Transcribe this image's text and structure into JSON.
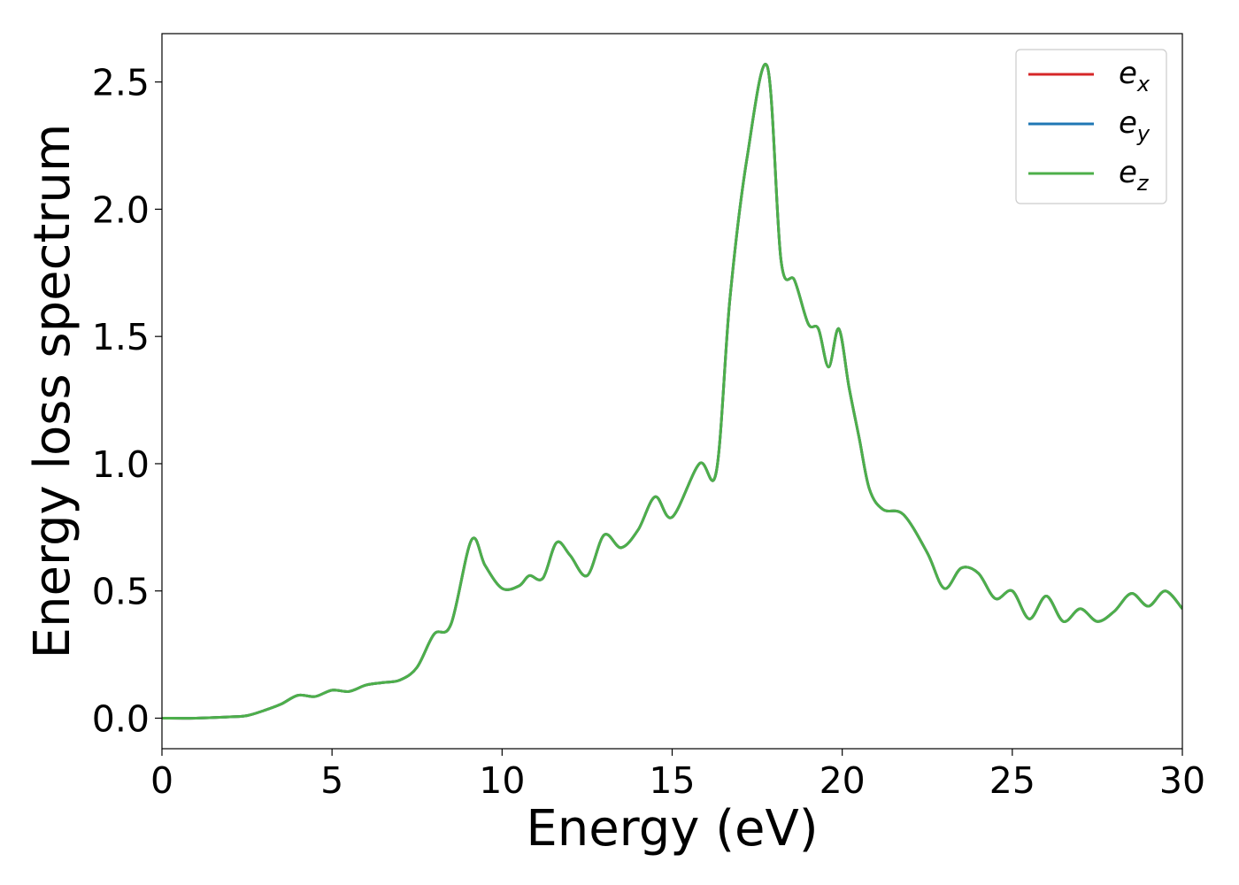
{
  "chart_data": {
    "type": "line",
    "xlabel": "Energy (eV)",
    "ylabel": "Energy loss spectrum",
    "xlim": [
      0,
      30
    ],
    "ylim": [
      -0.12,
      2.69
    ],
    "xticks": [
      "0",
      "5",
      "10",
      "15",
      "20",
      "25",
      "30"
    ],
    "yticks": [
      "0.0",
      "0.5",
      "1.0",
      "1.5",
      "2.0",
      "2.5"
    ],
    "grid": false,
    "legend_position": "top-right",
    "legend": [
      {
        "base": "e",
        "sub": "x",
        "color": "#d62728"
      },
      {
        "base": "e",
        "sub": "y",
        "color": "#1f77b4"
      },
      {
        "base": "e",
        "sub": "z",
        "color": "#4daf4a"
      }
    ],
    "x": [
      0,
      1,
      2,
      2.5,
      3,
      3.5,
      4,
      4.5,
      5,
      5.5,
      6,
      6.5,
      7,
      7.5,
      8,
      8.5,
      9.1,
      9.5,
      10,
      10.5,
      10.8,
      11.2,
      11.6,
      12,
      12.5,
      13,
      13.5,
      14,
      14.5,
      15,
      15.8,
      16.3,
      16.7,
      17.2,
      17.8,
      18.2,
      18.6,
      19,
      19.3,
      19.6,
      19.9,
      20.2,
      20.5,
      20.8,
      21.2,
      21.8,
      22.5,
      23,
      23.5,
      24,
      24.5,
      25,
      25.5,
      26,
      26.5,
      27,
      27.5,
      28,
      28.5,
      29,
      29.5,
      30
    ],
    "series": [
      {
        "name": "e_x",
        "color": "#d62728",
        "values": [
          0.0,
          0.0,
          0.005,
          0.01,
          0.03,
          0.055,
          0.09,
          0.085,
          0.11,
          0.105,
          0.13,
          0.14,
          0.15,
          0.2,
          0.33,
          0.37,
          0.7,
          0.6,
          0.51,
          0.52,
          0.56,
          0.55,
          0.69,
          0.64,
          0.56,
          0.72,
          0.67,
          0.74,
          0.87,
          0.79,
          1.0,
          0.97,
          1.65,
          2.2,
          2.56,
          1.8,
          1.72,
          1.55,
          1.53,
          1.38,
          1.53,
          1.3,
          1.1,
          0.9,
          0.82,
          0.8,
          0.65,
          0.51,
          0.59,
          0.57,
          0.47,
          0.5,
          0.39,
          0.48,
          0.38,
          0.43,
          0.38,
          0.42,
          0.49,
          0.44,
          0.5,
          0.43
        ]
      },
      {
        "name": "e_y",
        "color": "#1f77b4",
        "values": [
          0.0,
          0.0,
          0.005,
          0.01,
          0.03,
          0.055,
          0.09,
          0.085,
          0.11,
          0.105,
          0.13,
          0.14,
          0.15,
          0.2,
          0.33,
          0.37,
          0.7,
          0.6,
          0.51,
          0.52,
          0.56,
          0.55,
          0.69,
          0.64,
          0.56,
          0.72,
          0.67,
          0.74,
          0.87,
          0.79,
          1.0,
          0.97,
          1.65,
          2.2,
          2.56,
          1.8,
          1.72,
          1.55,
          1.53,
          1.38,
          1.53,
          1.3,
          1.1,
          0.9,
          0.82,
          0.8,
          0.65,
          0.51,
          0.59,
          0.57,
          0.47,
          0.5,
          0.39,
          0.48,
          0.38,
          0.43,
          0.38,
          0.42,
          0.49,
          0.44,
          0.5,
          0.43
        ]
      },
      {
        "name": "e_z",
        "color": "#4daf4a",
        "values": [
          0.0,
          0.0,
          0.005,
          0.01,
          0.03,
          0.055,
          0.09,
          0.085,
          0.11,
          0.105,
          0.13,
          0.14,
          0.15,
          0.2,
          0.33,
          0.37,
          0.7,
          0.6,
          0.51,
          0.52,
          0.56,
          0.55,
          0.69,
          0.64,
          0.56,
          0.72,
          0.67,
          0.74,
          0.87,
          0.79,
          1.0,
          0.97,
          1.65,
          2.2,
          2.56,
          1.8,
          1.72,
          1.55,
          1.53,
          1.38,
          1.53,
          1.3,
          1.1,
          0.9,
          0.82,
          0.8,
          0.65,
          0.51,
          0.59,
          0.57,
          0.47,
          0.5,
          0.39,
          0.48,
          0.38,
          0.43,
          0.38,
          0.42,
          0.49,
          0.44,
          0.5,
          0.43
        ]
      }
    ]
  }
}
